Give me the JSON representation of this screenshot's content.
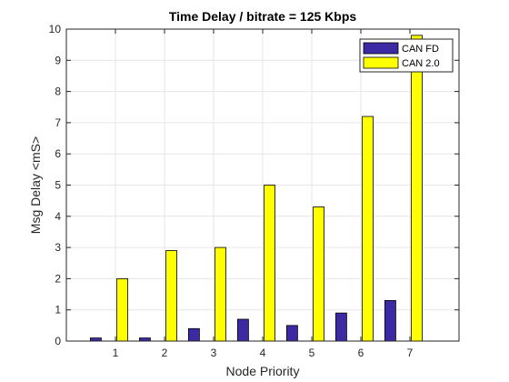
{
  "chart_data": {
    "type": "bar",
    "title": "Time Delay / bitrate = 125 Kbps",
    "xlabel": "Node Priority",
    "ylabel": "Msg Delay <mS>",
    "categories": [
      "1",
      "2",
      "3",
      "4",
      "5",
      "6",
      "7"
    ],
    "xlim": [
      0,
      8
    ],
    "ylim": [
      0,
      10
    ],
    "yticks": [
      0,
      1,
      2,
      3,
      4,
      5,
      6,
      7,
      8,
      9,
      10
    ],
    "grid": true,
    "legend_position": "top-right",
    "series": [
      {
        "name": "CAN FD",
        "color": "#3b2aa3",
        "values": [
          0.1,
          0.1,
          0.4,
          0.7,
          0.5,
          0.9,
          1.3
        ]
      },
      {
        "name": "CAN 2.0",
        "color": "#ffff00",
        "values": [
          2.0,
          2.9,
          3.0,
          5.0,
          4.3,
          7.2,
          9.8
        ]
      }
    ]
  }
}
